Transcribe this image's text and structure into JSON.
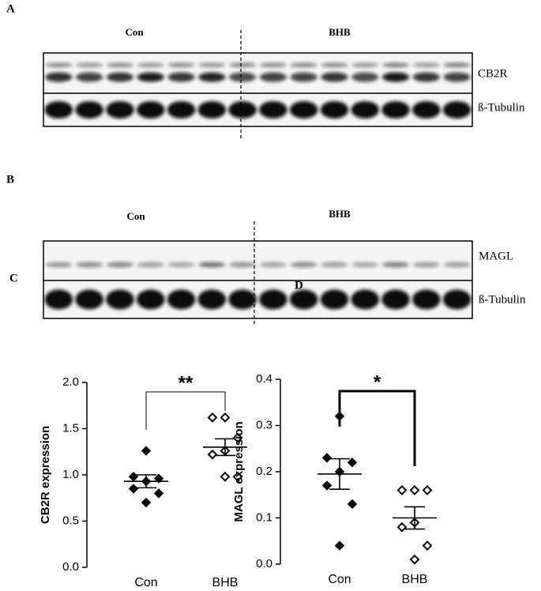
{
  "figure": {
    "panel_a": {
      "label": "A",
      "left_group": "Con",
      "right_group": "BHB",
      "bands": [
        "CB2R",
        "ß-Tubulin"
      ]
    },
    "panel_b": {
      "label": "B",
      "left_group": "Con",
      "right_group": "BHB",
      "bands": [
        "MAGL",
        "ß-Tubulin"
      ]
    }
  },
  "chart_data": [
    {
      "type": "dotplot",
      "panel_label": "C",
      "ylabel": "CB2R expression",
      "categories": [
        "Con",
        "BHB"
      ],
      "values": [
        [
          1.26,
          0.98,
          0.96,
          0.93,
          0.85,
          0.8,
          0.7
        ],
        [
          1.62,
          1.62,
          1.4,
          1.26,
          1.22,
          0.98,
          0.98
        ]
      ],
      "means": [
        0.93,
        1.3
      ],
      "sems": [
        0.07,
        0.09
      ],
      "markers": [
        "filled",
        "open"
      ],
      "significance": "**",
      "ylim": [
        0,
        2.0
      ],
      "yticks": [
        {
          "value": 0,
          "label": "0.0"
        },
        0.5,
        {
          "value": 1.0,
          "label": "1.0"
        },
        1.5,
        {
          "value": 2.0,
          "label": "2.0"
        }
      ]
    },
    {
      "type": "dotplot",
      "panel_label": "D",
      "ylabel": "MAGL expression",
      "categories": [
        "Con",
        "BHB"
      ],
      "values": [
        [
          0.32,
          0.23,
          0.22,
          0.2,
          0.17,
          0.13,
          0.04
        ],
        [
          0.16,
          0.16,
          0.16,
          0.09,
          0.08,
          0.04,
          0.01
        ]
      ],
      "means": [
        0.195,
        0.1
      ],
      "sems": [
        0.033,
        0.024
      ],
      "markers": [
        "filled",
        "open"
      ],
      "significance": "*",
      "ylim": [
        0,
        0.4
      ],
      "yticks": [
        {
          "value": 0,
          "label": "0.0"
        },
        0.1,
        0.2,
        0.3,
        0.4
      ]
    }
  ]
}
